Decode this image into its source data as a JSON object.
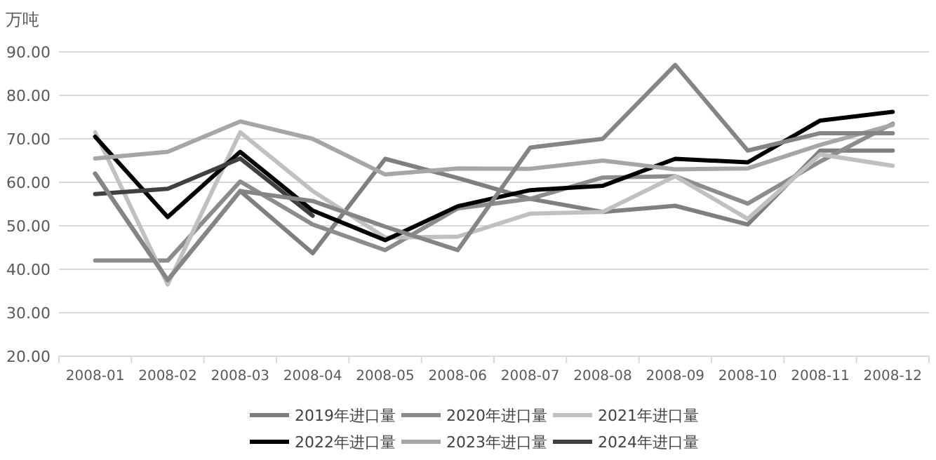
{
  "chart_data": {
    "type": "line",
    "ylabel": "万吨",
    "categories": [
      "2008-01",
      "2008-02",
      "2008-03",
      "2008-04",
      "2008-05",
      "2008-06",
      "2008-07",
      "2008-08",
      "2008-09",
      "2008-10",
      "2008-11",
      "2008-12"
    ],
    "series": [
      {
        "name": "2019年进口量",
        "color": "#7f7f7f",
        "values": [
          62,
          37.5,
          58,
          43.7,
          65.4,
          61,
          56.2,
          53.2,
          54.6,
          50.3,
          67.3,
          67.3
        ]
      },
      {
        "name": "2020年进口量",
        "color": "#8c8c8c",
        "values": [
          42,
          42,
          60.2,
          50.3,
          44.4,
          54,
          56.2,
          61.1,
          61.4,
          55.1,
          64.8,
          73.5
        ]
      },
      {
        "name": "2021年进口量",
        "color": "#c0c0c0",
        "values": [
          71.5,
          36.5,
          71.5,
          58,
          47.3,
          47.5,
          52.8,
          53.2,
          61.4,
          51.6,
          66.4,
          63.8
        ]
      },
      {
        "name": "2022年进口量",
        "color": "#000000",
        "values": [
          70.5,
          52,
          67,
          53.5,
          46.7,
          54.5,
          58.2,
          59.2,
          65.4,
          64.6,
          74.2,
          76.2
        ]
      },
      {
        "name": "2023年进口量",
        "color": "#a6a6a6",
        "values": [
          65.5,
          67,
          74,
          70,
          61.8,
          63.2,
          63.1,
          65,
          63,
          63.2,
          68.6,
          73.2
        ]
      },
      {
        "name": "2024年进口量",
        "color": "#404040",
        "values": [
          57.3,
          58.5,
          65.5,
          52.3,
          null,
          null,
          null,
          null,
          null,
          null,
          null,
          null
        ]
      },
      {
        "color": "#858585",
        "values": [
          62,
          37.5,
          58,
          55.7,
          49.8,
          44.4,
          68,
          70,
          87,
          67.3,
          71.3,
          71.3
        ]
      }
    ],
    "ylim": [
      20,
      90
    ],
    "yticks": [
      {
        "value": 20,
        "label": "20.00"
      },
      {
        "value": 30,
        "label": "30.00"
      },
      {
        "value": 40,
        "label": "40.00"
      },
      {
        "value": 50,
        "label": "50.00"
      },
      {
        "value": 60,
        "label": "60.00"
      },
      {
        "value": 70,
        "label": "70.00"
      },
      {
        "value": 80,
        "label": "80.00"
      },
      {
        "value": 90,
        "label": "90.00"
      }
    ],
    "grid": "y",
    "legend": "bottom",
    "marker": "none",
    "line_style": "solid"
  }
}
